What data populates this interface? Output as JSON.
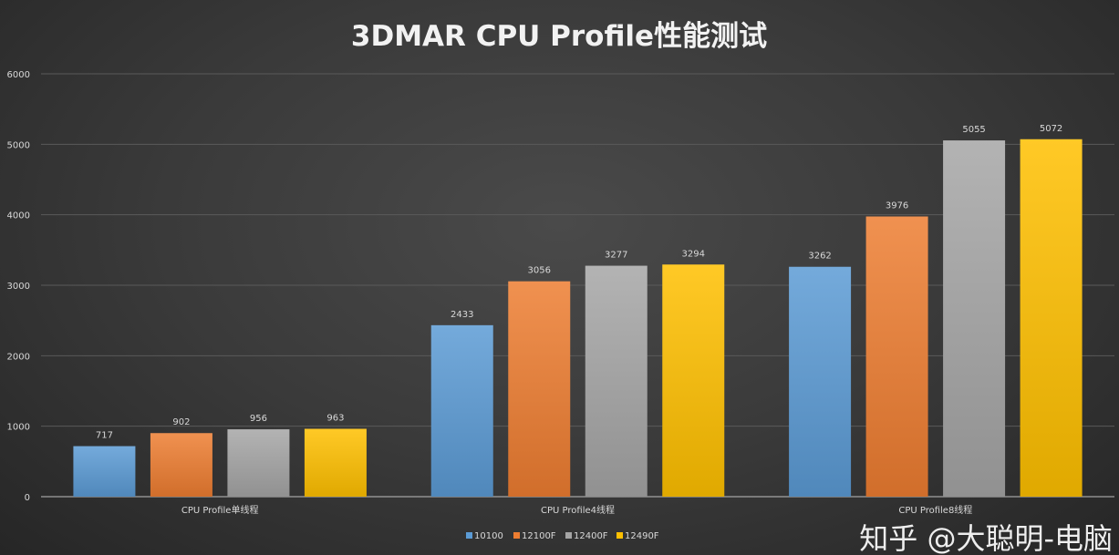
{
  "chart_data": {
    "type": "bar",
    "title": "3DMAR CPU Profile性能测试",
    "categories": [
      "CPU Profile单线程",
      "CPU Profile4线程",
      "CPU Profile8线程"
    ],
    "series": [
      {
        "name": "10100",
        "values": [
          717,
          2433,
          3262
        ],
        "color": "#5b9bd5"
      },
      {
        "name": "12100F",
        "values": [
          902,
          3056,
          3976
        ],
        "color": "#ed7d31"
      },
      {
        "name": "12400F",
        "values": [
          956,
          3277,
          5055
        ],
        "color": "#a5a5a5"
      },
      {
        "name": "12490F",
        "values": [
          963,
          3294,
          5072
        ],
        "color": "#ffc000"
      }
    ],
    "ylim": [
      0,
      6000
    ],
    "yticks": [
      0,
      1000,
      2000,
      3000,
      4000,
      5000,
      6000
    ],
    "grid": true,
    "legend": "bottom",
    "data_labels": true
  },
  "watermark": "知乎 @大聪明-电脑"
}
